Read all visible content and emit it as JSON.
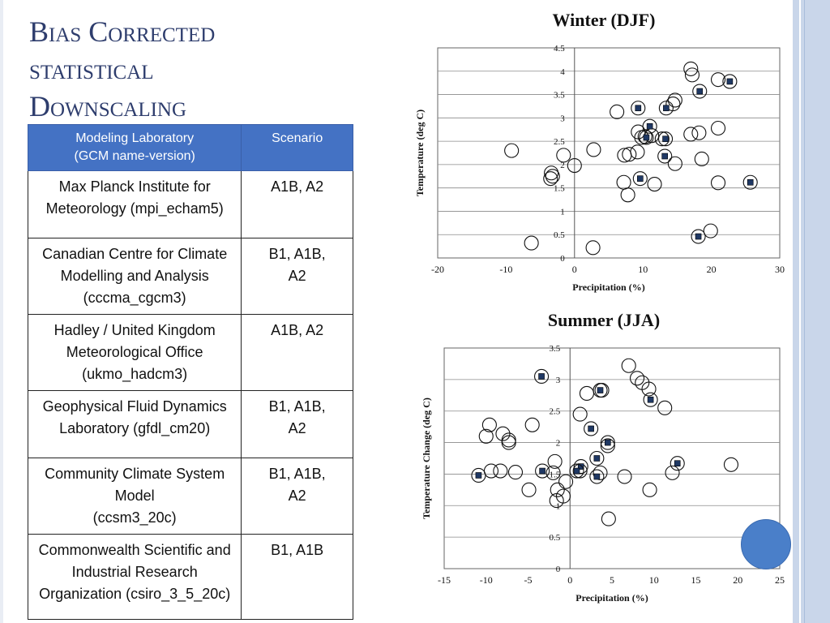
{
  "title": {
    "line1": "Bias Corrected",
    "line2": "statistical",
    "line3": "Downscaling"
  },
  "table": {
    "headers": [
      "Modeling Laboratory (GCM name-version)",
      "Scenario"
    ],
    "header_lines": [
      [
        "Modeling Laboratory",
        "(GCM name-version)"
      ],
      [
        "Scenario"
      ]
    ],
    "rows": [
      {
        "lab": [
          "Max Planck Institute for",
          "Meteorology (mpi_echam5)"
        ],
        "scenario": [
          "A1B, A2"
        ]
      },
      {
        "lab": [
          "Canadian Centre for Climate",
          "Modelling and Analysis",
          "(cccma_cgcm3)"
        ],
        "scenario": [
          "B1, A1B,",
          "A2"
        ]
      },
      {
        "lab": [
          "Hadley / United Kingdom",
          "Meteorological Office",
          "(ukmo_hadcm3)"
        ],
        "scenario": [
          "A1B, A2"
        ]
      },
      {
        "lab": [
          "Geophysical Fluid Dynamics",
          "Laboratory (gfdl_cm20)"
        ],
        "scenario": [
          "B1, A1B,",
          "A2"
        ]
      },
      {
        "lab": [
          "Community Climate System",
          "Model",
          "(ccsm3_20c)"
        ],
        "scenario": [
          "B1, A1B,",
          "A2"
        ]
      },
      {
        "lab": [
          "Commonwealth Scientific and",
          "Industrial Research",
          "Organization (csiro_3_5_20c)"
        ],
        "scenario": [
          "B1, A1B"
        ]
      }
    ]
  },
  "colors": {
    "title": "#2e3d6d",
    "table_header": "#4472c4",
    "marker_fill": "#1f3864",
    "accent_dot": "#4a7fc9"
  },
  "chart_data": [
    {
      "type": "scatter",
      "title": "Winter  (DJF)",
      "xlabel": "Precipitation (%)",
      "ylabel": "Temperature (deg C)",
      "xlim": [
        -20,
        30
      ],
      "ylim": [
        0,
        4.5
      ],
      "xticks": [
        -20,
        -10,
        0,
        10,
        20,
        30
      ],
      "yticks": [
        0,
        0.5,
        1,
        1.5,
        2,
        2.5,
        3,
        3.5,
        4,
        4.5
      ],
      "grid": "horizontal",
      "series": [
        {
          "marker": "open-circle",
          "points": [
            [
              17,
              4.05
            ],
            [
              17.2,
              3.92
            ],
            [
              21,
              3.82
            ],
            [
              14.7,
              3.38
            ],
            [
              14.4,
              3.3
            ],
            [
              6.2,
              3.13
            ],
            [
              9.3,
              2.7
            ],
            [
              10.3,
              2.6
            ],
            [
              9.8,
              2.58
            ],
            [
              11.3,
              2.62
            ],
            [
              12.8,
              2.55
            ],
            [
              17,
              2.65
            ],
            [
              18.2,
              2.68
            ],
            [
              21,
              2.78
            ],
            [
              2.8,
              2.32
            ],
            [
              7.3,
              2.2
            ],
            [
              8,
              2.22
            ],
            [
              9.2,
              2.27
            ],
            [
              -9.2,
              2.3
            ],
            [
              -1.6,
              2.2
            ],
            [
              0,
              1.98
            ],
            [
              -3.4,
              1.82
            ],
            [
              -3.2,
              1.75
            ],
            [
              -3.5,
              1.7
            ],
            [
              14.7,
              2.02
            ],
            [
              18.6,
              2.12
            ],
            [
              7.2,
              1.62
            ],
            [
              11.7,
              1.58
            ],
            [
              7.8,
              1.35
            ],
            [
              21,
              1.61
            ],
            [
              19.9,
              0.58
            ],
            [
              -6.3,
              0.32
            ],
            [
              2.7,
              0.22
            ]
          ]
        },
        {
          "marker": "circle-with-square",
          "points": [
            [
              22.7,
              3.78
            ],
            [
              18.3,
              3.57
            ],
            [
              9.3,
              3.21
            ],
            [
              13.4,
              3.21
            ],
            [
              11,
              2.82
            ],
            [
              10.5,
              2.58
            ],
            [
              13.3,
              2.55
            ],
            [
              13.2,
              2.18
            ],
            [
              9.6,
              1.7
            ],
            [
              25.7,
              1.62
            ],
            [
              18.1,
              0.46
            ]
          ]
        }
      ]
    },
    {
      "type": "scatter",
      "title": "Summer (JJA)",
      "xlabel": "Precipitation (%)",
      "ylabel": "Temperature Change (deg C)",
      "xlim": [
        -15,
        25
      ],
      "ylim": [
        0,
        3.5
      ],
      "xticks": [
        -15,
        -10,
        -5,
        0,
        5,
        10,
        15,
        20,
        25
      ],
      "yticks": [
        0,
        0.5,
        1,
        1.5,
        2,
        2.5,
        3,
        3.5
      ],
      "grid": "horizontal",
      "series": [
        {
          "marker": "open-circle",
          "points": [
            [
              7,
              3.22
            ],
            [
              8,
              3.02
            ],
            [
              8.6,
              2.95
            ],
            [
              9.4,
              2.85
            ],
            [
              3.8,
              2.83
            ],
            [
              2,
              2.78
            ],
            [
              11.3,
              2.55
            ],
            [
              1.2,
              2.45
            ],
            [
              -9.6,
              2.28
            ],
            [
              -4.5,
              2.28
            ],
            [
              -8,
              2.14
            ],
            [
              -7.3,
              2.04
            ],
            [
              -10,
              2.1
            ],
            [
              -7.3,
              2.0
            ],
            [
              4.5,
              1.95
            ],
            [
              -9.4,
              1.55
            ],
            [
              -8.3,
              1.55
            ],
            [
              -6.5,
              1.53
            ],
            [
              -2,
              1.52
            ],
            [
              1.2,
              1.55
            ],
            [
              3.6,
              1.52
            ],
            [
              6.5,
              1.46
            ],
            [
              12.2,
              1.52
            ],
            [
              19.2,
              1.65
            ],
            [
              -1.8,
              1.7
            ],
            [
              -0.5,
              1.38
            ],
            [
              -1.5,
              1.25
            ],
            [
              -4.9,
              1.25
            ],
            [
              9.5,
              1.25
            ],
            [
              -0.8,
              1.15
            ],
            [
              -1.6,
              1.08
            ],
            [
              4.6,
              0.79
            ]
          ]
        },
        {
          "marker": "circle-with-square",
          "points": [
            [
              -3.4,
              3.05
            ],
            [
              3.6,
              2.83
            ],
            [
              9.6,
              2.68
            ],
            [
              2.5,
              2.22
            ],
            [
              4.5,
              2.0
            ],
            [
              3.2,
              1.75
            ],
            [
              1.3,
              1.62
            ],
            [
              12.8,
              1.67
            ],
            [
              -3.3,
              1.55
            ],
            [
              0.8,
              1.55
            ],
            [
              -10.9,
              1.48
            ],
            [
              3.2,
              1.46
            ]
          ]
        }
      ]
    }
  ]
}
